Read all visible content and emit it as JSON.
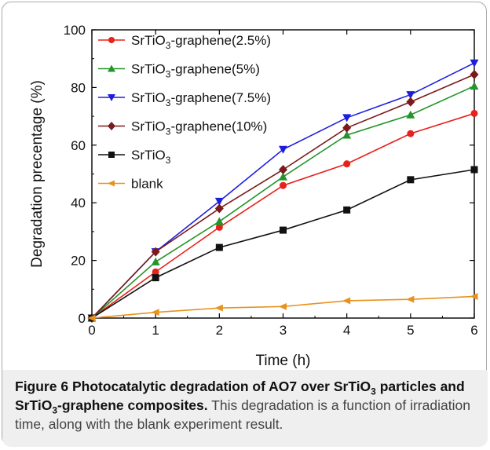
{
  "chart_data": {
    "type": "line",
    "xlabel": "Time (h)",
    "ylabel": "Degradation precentage (%)",
    "xlim": [
      0,
      6
    ],
    "ylim": [
      0,
      100
    ],
    "xticks": [
      "0",
      "1",
      "2",
      "3",
      "4",
      "5",
      "6"
    ],
    "yticks": [
      "0",
      "20",
      "40",
      "60",
      "80",
      "100"
    ],
    "grid": false,
    "legend_position": "top-left",
    "x": [
      0,
      1,
      2,
      3,
      4,
      5,
      6
    ],
    "series": [
      {
        "name_main": "SrTiO",
        "name_sub": "3",
        "name_rest": "-graphene(2.5%)",
        "color": "#e8211b",
        "marker": "circle",
        "values": [
          0,
          16,
          31.5,
          46,
          53.5,
          64,
          71
        ]
      },
      {
        "name_main": "SrTiO",
        "name_sub": "3",
        "name_rest": "-graphene(5%)",
        "color": "#23952a",
        "marker": "triangle-up",
        "values": [
          0,
          19.5,
          33.5,
          49,
          63.5,
          70.5,
          80.5
        ]
      },
      {
        "name_main": "SrTiO",
        "name_sub": "3",
        "name_rest": "-graphene(7.5%)",
        "color": "#1d1dde",
        "marker": "triangle-down",
        "values": [
          0,
          23,
          40.5,
          58.5,
          69.5,
          77.5,
          88.5
        ]
      },
      {
        "name_main": "SrTiO",
        "name_sub": "3",
        "name_rest": "-graphene(10%)",
        "color": "#7a1a1a",
        "marker": "diamond",
        "values": [
          0,
          23,
          38,
          51.5,
          66,
          75,
          84.5
        ]
      },
      {
        "name_main": "SrTiO",
        "name_sub": "3",
        "name_rest": "",
        "color": "#111111",
        "marker": "square",
        "values": [
          0,
          14,
          24.5,
          30.5,
          37.5,
          48,
          51.5
        ]
      },
      {
        "name_main": "blank",
        "name_sub": "",
        "name_rest": "",
        "color": "#e8921e",
        "marker": "triangle-left",
        "values": [
          0,
          2,
          3.5,
          4,
          6,
          6.5,
          7.5
        ]
      }
    ]
  },
  "caption": {
    "fig_label": "Figure 6",
    "title_a": "Photocatalytic degradation of AO7 over SrTiO",
    "title_sub1": "3",
    "title_b": " particles and SrTiO",
    "title_sub2": "3",
    "title_c": "-graphene composites.",
    "body": "This degradation is a function of irradiation time, along with the blank experiment result."
  }
}
